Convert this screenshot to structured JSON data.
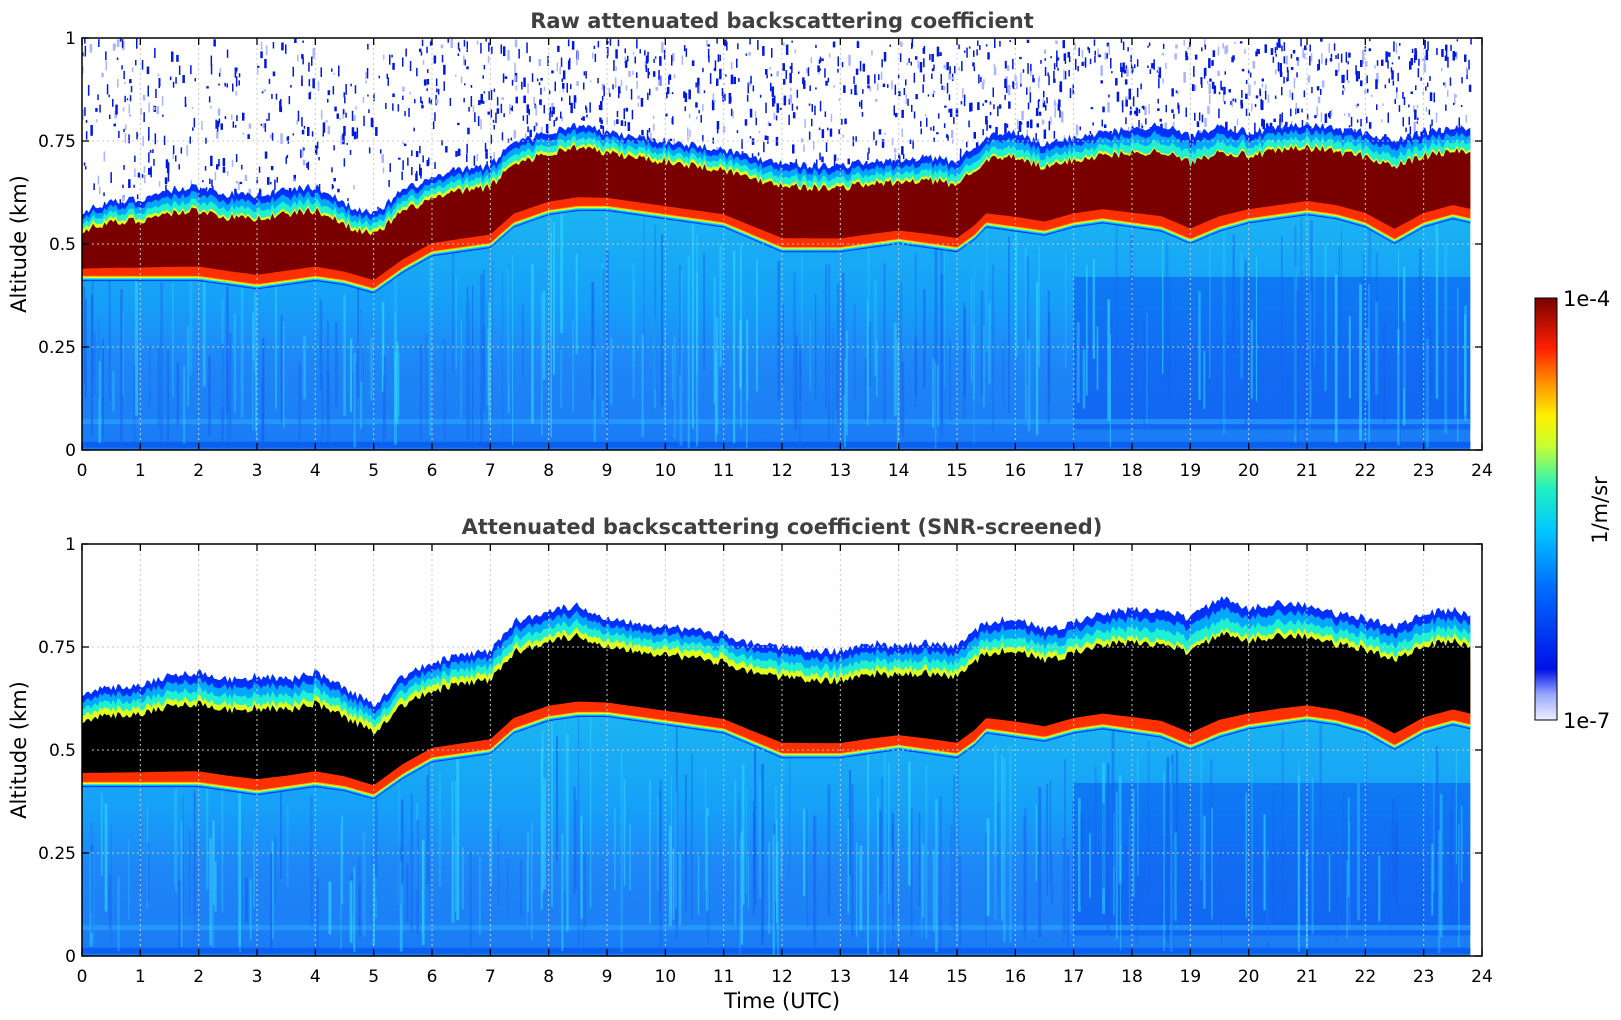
{
  "figure": {
    "panel_top_title": "Raw attenuated backscattering coefficient",
    "panel_bottom_title": "Attenuated backscattering coefficient (SNR-screened)",
    "ylabel": "Altitude (km)",
    "xlabel": "Time (UTC)",
    "colorbar_label": "1/m/sr",
    "colorbar_max_label": "1e-4",
    "colorbar_min_label": "1e-7"
  },
  "colors": {
    "background": "#ffffff",
    "axis": "#000000",
    "title": "#404040",
    "grid": "#bbbbbb",
    "saturated_top": "#7a0000",
    "saturated_bottom": "#000000",
    "noise": "#0018e0"
  },
  "chart_data": [
    {
      "type": "heatmap",
      "title": "Raw attenuated backscattering coefficient",
      "xlabel": "",
      "ylabel": "Altitude (km)",
      "xlim": [
        0,
        24
      ],
      "ylim": [
        0,
        1
      ],
      "x_ticks": [
        "0",
        "1",
        "2",
        "3",
        "4",
        "5",
        "6",
        "7",
        "8",
        "9",
        "10",
        "11",
        "12",
        "13",
        "14",
        "15",
        "16",
        "17",
        "18",
        "19",
        "20",
        "21",
        "22",
        "23",
        "24"
      ],
      "y_ticks": [
        "0",
        "0.25",
        "0.5",
        "0.75",
        "1"
      ],
      "grid": true,
      "colorscale": "jet (log)",
      "color_range": [
        "1e-7",
        "1e-4"
      ],
      "layer_time_utc": [
        0,
        0.5,
        1,
        1.5,
        2,
        2.5,
        3,
        3.5,
        4,
        4.5,
        5,
        5.5,
        6,
        6.5,
        7,
        7.4,
        8,
        8.5,
        9,
        9.5,
        10,
        10.5,
        11,
        11.5,
        12,
        12.5,
        13,
        13.5,
        14,
        14.5,
        15,
        15.3,
        15.5,
        16,
        16.5,
        17,
        17.5,
        18,
        18.5,
        19,
        19.5,
        20,
        20.5,
        21,
        21.5,
        22,
        22.5,
        23,
        23.5,
        23.8
      ],
      "layer_top_km": [
        0.56,
        0.58,
        0.59,
        0.61,
        0.62,
        0.6,
        0.6,
        0.61,
        0.62,
        0.58,
        0.55,
        0.61,
        0.64,
        0.66,
        0.67,
        0.73,
        0.75,
        0.77,
        0.75,
        0.74,
        0.73,
        0.72,
        0.71,
        0.69,
        0.68,
        0.67,
        0.67,
        0.68,
        0.68,
        0.69,
        0.68,
        0.72,
        0.74,
        0.75,
        0.72,
        0.74,
        0.75,
        0.76,
        0.77,
        0.74,
        0.77,
        0.75,
        0.76,
        0.77,
        0.76,
        0.75,
        0.73,
        0.75,
        0.76,
        0.76
      ],
      "layer_base_km": [
        0.43,
        0.43,
        0.43,
        0.43,
        0.43,
        0.42,
        0.41,
        0.42,
        0.43,
        0.42,
        0.4,
        0.45,
        0.49,
        0.5,
        0.51,
        0.56,
        0.59,
        0.6,
        0.6,
        0.59,
        0.58,
        0.57,
        0.56,
        0.53,
        0.5,
        0.5,
        0.5,
        0.51,
        0.52,
        0.51,
        0.5,
        0.53,
        0.56,
        0.55,
        0.54,
        0.56,
        0.57,
        0.56,
        0.55,
        0.52,
        0.55,
        0.57,
        0.58,
        0.59,
        0.58,
        0.56,
        0.52,
        0.56,
        0.58,
        0.57
      ]
    },
    {
      "type": "heatmap",
      "title": "Attenuated backscattering coefficient (SNR-screened)",
      "xlabel": "Time (UTC)",
      "ylabel": "Altitude (km)",
      "xlim": [
        0,
        24
      ],
      "ylim": [
        0,
        1
      ],
      "x_ticks": [
        "0",
        "1",
        "2",
        "3",
        "4",
        "5",
        "6",
        "7",
        "8",
        "9",
        "10",
        "11",
        "12",
        "13",
        "14",
        "15",
        "16",
        "17",
        "18",
        "19",
        "20",
        "21",
        "22",
        "23",
        "24"
      ],
      "y_ticks": [
        "0",
        "0.25",
        "0.5",
        "0.75",
        "1"
      ],
      "grid": true,
      "colorscale": "jet (log)",
      "color_range": [
        "1e-7",
        "1e-4"
      ],
      "signal_top_km": [
        0.61,
        0.62,
        0.63,
        0.65,
        0.66,
        0.64,
        0.65,
        0.64,
        0.66,
        0.62,
        0.58,
        0.65,
        0.68,
        0.7,
        0.71,
        0.78,
        0.81,
        0.82,
        0.79,
        0.78,
        0.77,
        0.76,
        0.75,
        0.73,
        0.72,
        0.71,
        0.71,
        0.73,
        0.72,
        0.73,
        0.72,
        0.76,
        0.78,
        0.79,
        0.76,
        0.78,
        0.8,
        0.81,
        0.81,
        0.79,
        0.84,
        0.81,
        0.83,
        0.82,
        0.8,
        0.79,
        0.77,
        0.8,
        0.81,
        0.8
      ]
    }
  ]
}
